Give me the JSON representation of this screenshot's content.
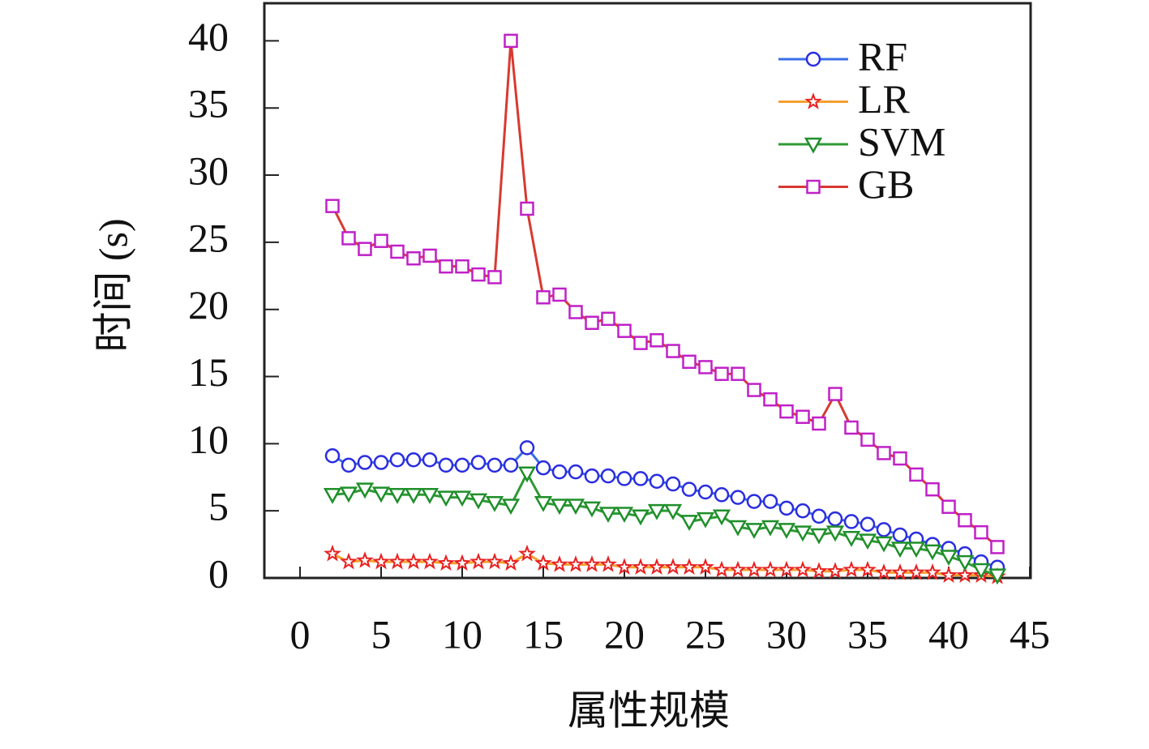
{
  "chart_data": {
    "type": "line",
    "xlabel": "属性规模",
    "ylabel": "时间 (s)",
    "x": [
      2,
      3,
      4,
      5,
      6,
      7,
      8,
      9,
      10,
      11,
      12,
      13,
      14,
      15,
      16,
      17,
      18,
      19,
      20,
      21,
      22,
      23,
      24,
      25,
      26,
      27,
      28,
      29,
      30,
      31,
      32,
      33,
      34,
      35,
      36,
      37,
      38,
      39,
      40,
      41,
      42,
      43
    ],
    "xlim": [
      -2.2,
      45.05
    ],
    "xticks": [
      0,
      5,
      10,
      15,
      20,
      25,
      30,
      35,
      40,
      45
    ],
    "ylim": [
      0,
      42.8
    ],
    "yticks": [
      0,
      5,
      10,
      15,
      20,
      25,
      30,
      35,
      40
    ],
    "legend": "upper right",
    "series": [
      {
        "name": "RF",
        "color": "#3a6ee8",
        "marker_color": "#2a2ee0",
        "marker": "circle",
        "values": [
          9.1,
          8.4,
          8.6,
          8.6,
          8.8,
          8.8,
          8.8,
          8.4,
          8.4,
          8.6,
          8.4,
          8.4,
          9.7,
          8.2,
          7.9,
          7.9,
          7.6,
          7.6,
          7.4,
          7.4,
          7.2,
          7.0,
          6.6,
          6.4,
          6.2,
          6.0,
          5.7,
          5.7,
          5.2,
          5.0,
          4.6,
          4.4,
          4.2,
          4.0,
          3.6,
          3.2,
          2.9,
          2.5,
          2.2,
          1.8,
          1.2,
          0.8
        ]
      },
      {
        "name": "LR",
        "color": "#f5a030",
        "marker_color": "#e82020",
        "marker": "star",
        "values": [
          1.8,
          1.2,
          1.3,
          1.2,
          1.2,
          1.2,
          1.2,
          1.1,
          1.1,
          1.2,
          1.2,
          1.1,
          1.8,
          1.1,
          1.0,
          1.0,
          1.0,
          1.0,
          0.8,
          0.8,
          0.8,
          0.8,
          0.8,
          0.8,
          0.6,
          0.6,
          0.6,
          0.6,
          0.6,
          0.6,
          0.5,
          0.5,
          0.6,
          0.6,
          0.4,
          0.4,
          0.4,
          0.4,
          0.2,
          0.2,
          0.2,
          0.1
        ]
      },
      {
        "name": "SVM",
        "color": "#2e9a35",
        "marker_color": "#1f8f2a",
        "marker": "triangle-down",
        "values": [
          6.2,
          6.3,
          6.6,
          6.3,
          6.2,
          6.2,
          6.2,
          6.0,
          6.0,
          5.8,
          5.6,
          5.4,
          7.8,
          5.6,
          5.4,
          5.4,
          5.2,
          4.8,
          4.8,
          4.6,
          5.0,
          5.0,
          4.2,
          4.4,
          4.6,
          3.8,
          3.6,
          3.8,
          3.6,
          3.4,
          3.2,
          3.4,
          3.0,
          2.8,
          2.6,
          2.2,
          2.2,
          2.0,
          1.6,
          1.2,
          0.6,
          0.2
        ]
      },
      {
        "name": "GB",
        "color": "#d83a30",
        "marker_color": "#c020c8",
        "marker": "square",
        "values": [
          27.7,
          25.3,
          24.5,
          25.1,
          24.3,
          23.8,
          24.0,
          23.2,
          23.2,
          22.6,
          22.4,
          40.0,
          27.5,
          20.9,
          21.1,
          19.8,
          19.0,
          19.3,
          18.4,
          17.5,
          17.7,
          16.9,
          16.1,
          15.7,
          15.2,
          15.2,
          14.0,
          13.3,
          12.4,
          12.0,
          11.5,
          13.7,
          11.2,
          10.3,
          9.3,
          8.9,
          7.7,
          6.6,
          5.3,
          4.3,
          3.4,
          2.3
        ]
      }
    ]
  }
}
